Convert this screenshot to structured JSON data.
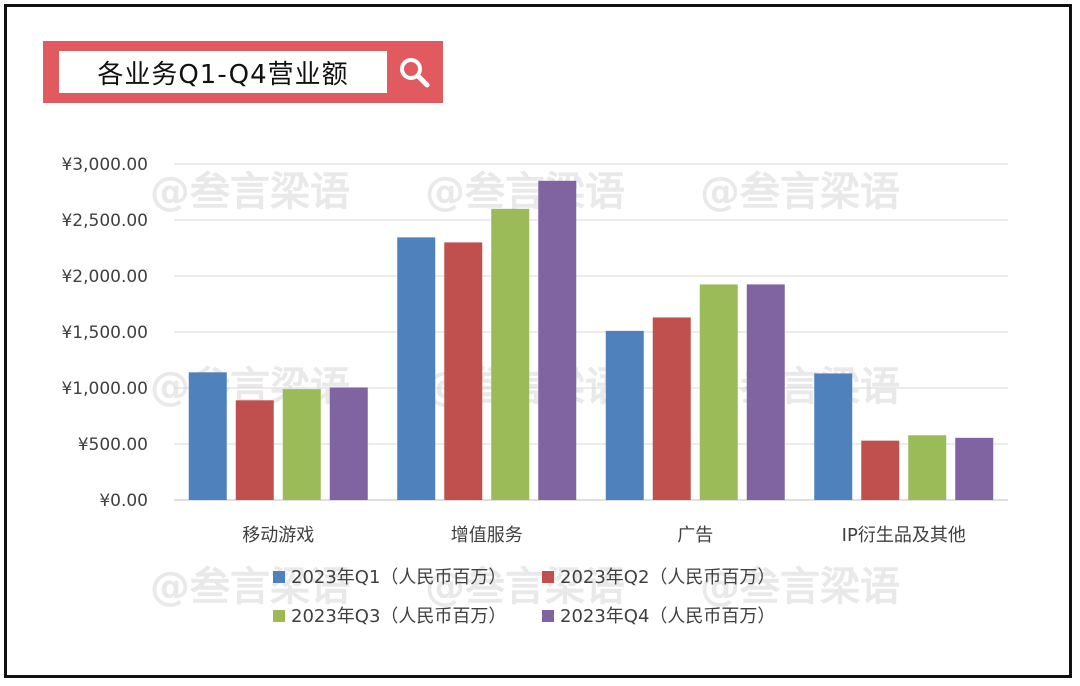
{
  "header": {
    "title": "各业务Q1-Q4营业额"
  },
  "watermark": "@叁言梁语",
  "colors": {
    "accent": "#e05a60",
    "q1": "#4f81bd",
    "q2": "#c0504d",
    "q3": "#9bbb59",
    "q4": "#8064a2"
  },
  "chart_data": {
    "type": "bar",
    "title": "",
    "xlabel": "",
    "ylabel": "",
    "categories": [
      "移动游戏",
      "增值服务",
      "广告",
      "IP衍生品及其他"
    ],
    "series": [
      {
        "name": "2023年Q1（人民币百万）",
        "values": [
          1140,
          2345,
          1510,
          1130
        ]
      },
      {
        "name": "2023年Q2（人民币百万）",
        "values": [
          890,
          2300,
          1630,
          530
        ]
      },
      {
        "name": "2023年Q3（人民币百万）",
        "values": [
          990,
          2600,
          1925,
          578
        ]
      },
      {
        "name": "2023年Q4（人民币百万）",
        "values": [
          1005,
          2850,
          1925,
          555
        ]
      }
    ],
    "yticks": [
      "¥0.00",
      "¥500.00",
      "¥1,000.00",
      "¥1,500.00",
      "¥2,000.00",
      "¥2,500.00",
      "¥3,000.00"
    ],
    "ylim": [
      0,
      3000
    ],
    "grid": true,
    "legend": "bottom"
  }
}
